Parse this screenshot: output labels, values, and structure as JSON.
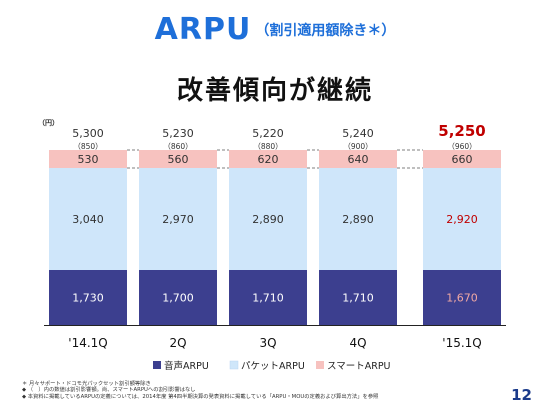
{
  "header": {
    "title": "ARPU",
    "subtitle": "（割引適用額除き＊）",
    "headline": "改善傾向が継続"
  },
  "colors": {
    "title": "#1e6fd9",
    "voice": "#3c3f8f",
    "packet": "#cfe6fa",
    "smart": "#f7c2bf",
    "highlight": "#c00000",
    "label_dark": "#333333"
  },
  "chart_data": {
    "type": "bar",
    "stacked": true,
    "unit_label": "（円）",
    "categories": [
      "'14.1Q",
      "2Q",
      "3Q",
      "4Q",
      "'15.1Q"
    ],
    "series": [
      {
        "name": "音声ARPU",
        "color": "#3c3f8f",
        "values": [
          1730,
          1700,
          1710,
          1710,
          1670
        ]
      },
      {
        "name": "パケットARPU",
        "color": "#cfe6fa",
        "values": [
          3040,
          2970,
          2890,
          2890,
          2920
        ]
      },
      {
        "name": "スマートARPU",
        "color": "#f7c2bf",
        "values": [
          530,
          560,
          620,
          640,
          660
        ]
      }
    ],
    "totals": [
      "5,300",
      "5,230",
      "5,220",
      "5,240",
      "5,250"
    ],
    "totals_sub": [
      "（850）",
      "（860）",
      "（880）",
      "（900）",
      "（960）"
    ],
    "value_labels": {
      "voice": [
        "1,730",
        "1,700",
        "1,710",
        "1,710",
        "1,670"
      ],
      "packet": [
        "3,040",
        "2,970",
        "2,890",
        "2,890",
        "2,920"
      ],
      "smart": [
        "530",
        "560",
        "620",
        "640",
        "660"
      ]
    },
    "highlight_index": 4,
    "legend_position": "bottom"
  },
  "notes": [
    "＊ 月々サポート・ドコモ光パックセット割引額等除き",
    "◆ （　）内の数値は割引影響額。尚、スマートARPUへの割引影響はなし",
    "◆ 本資料に掲載しているARPUの定義については、2014年度 第4四半期決算の発表資料に掲載している「ARPU・MOUの定義および算出方法」を参照"
  ],
  "page_number": "12"
}
